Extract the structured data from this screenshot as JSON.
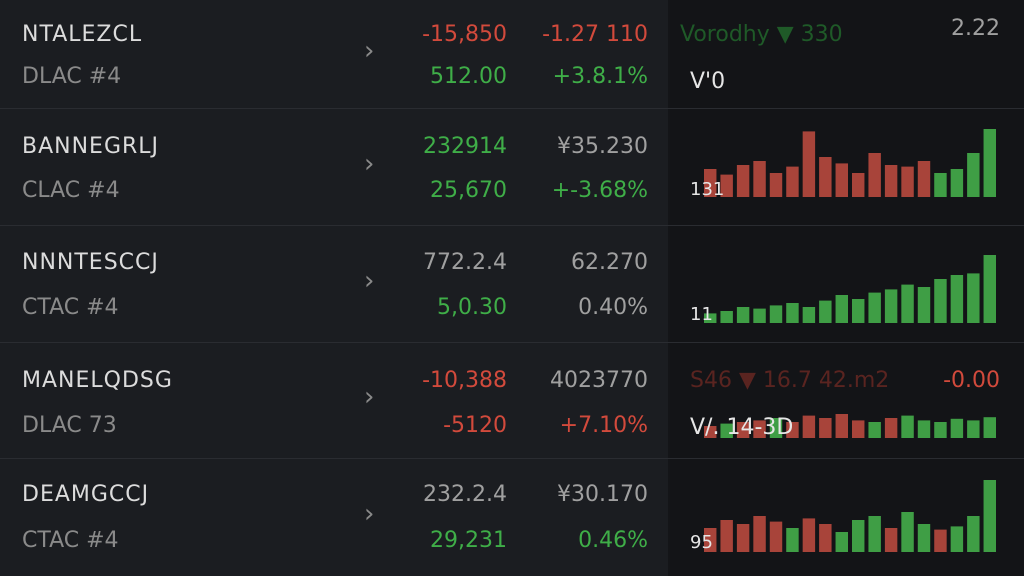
{
  "rows": [
    {
      "name": "NTALEZCL",
      "sub": "DLAC #4",
      "top": [
        "-15,850",
        "-1.27 110"
      ],
      "bottom": [
        "512.00",
        "+3.8.1%"
      ],
      "panel": {
        "header": "Vorodhy ▼ 330",
        "value": "2.22",
        "label": "V'0"
      }
    },
    {
      "name": "BANNEGRLJ",
      "sub": "CLAC #4",
      "top": [
        "232914",
        "¥35.230"
      ],
      "bottom": [
        "25,670",
        "+-3.68%"
      ],
      "panel": {
        "label": "131"
      },
      "chart": {
        "values": [
          35,
          28,
          40,
          45,
          30,
          38,
          82,
          50,
          42,
          30,
          55,
          40,
          38,
          45,
          30,
          35,
          55,
          85
        ],
        "colors": [
          "#a8443a",
          "#a8443a",
          "#a8443a",
          "#a8443a",
          "#a8443a",
          "#a8443a",
          "#a8443a",
          "#a8443a",
          "#a8443a",
          "#a8443a",
          "#a8443a",
          "#a8443a",
          "#a8443a",
          "#a8443a",
          "#3f9e45",
          "#3f9e45",
          "#3f9e45",
          "#3f9e45"
        ]
      }
    },
    {
      "name": "NNNTESCCJ",
      "sub": "CTAC #4",
      "top": [
        "772.2.4",
        "62.270"
      ],
      "bottom": [
        "5,0.30",
        "0.40%"
      ],
      "panel": {
        "label": "11"
      },
      "chart": {
        "values": [
          12,
          15,
          20,
          18,
          22,
          25,
          20,
          28,
          35,
          30,
          38,
          42,
          48,
          45,
          55,
          60,
          62,
          85
        ],
        "colors": [
          "#3f9e45",
          "#3f9e45",
          "#3f9e45",
          "#3f9e45",
          "#3f9e45",
          "#3f9e45",
          "#3f9e45",
          "#3f9e45",
          "#3f9e45",
          "#3f9e45",
          "#3f9e45",
          "#3f9e45",
          "#3f9e45",
          "#3f9e45",
          "#3f9e45",
          "#3f9e45",
          "#3f9e45",
          "#3f9e45"
        ]
      }
    },
    {
      "name": "MANELQDSG",
      "sub": "DLAC 73",
      "top": [
        "-10,388",
        "4023770"
      ],
      "bottom": [
        "-5120",
        "+7.10%"
      ],
      "panel": {
        "header": "S46 ▼ 16.7 42.m2",
        "value": "-0.00",
        "label": "V/. 14-3D"
      },
      "chart": {
        "values": [
          15,
          18,
          20,
          22,
          25,
          20,
          28,
          25,
          30,
          22,
          20,
          25,
          28,
          22,
          20,
          24,
          22,
          26
        ],
        "colors": [
          "#a8443a",
          "#3f9e45",
          "#a8443a",
          "#a8443a",
          "#3f9e45",
          "#a8443a",
          "#a8443a",
          "#a8443a",
          "#a8443a",
          "#a8443a",
          "#3f9e45",
          "#a8443a",
          "#3f9e45",
          "#3f9e45",
          "#3f9e45",
          "#3f9e45",
          "#3f9e45",
          "#3f9e45"
        ]
      }
    },
    {
      "name": "DEAMGCCJ",
      "sub": "CTAC #4",
      "top": [
        "232.2.4",
        "¥30.170"
      ],
      "bottom": [
        "29,231",
        "0.46%"
      ],
      "panel": {
        "label": "95"
      },
      "chart": {
        "values": [
          30,
          40,
          35,
          45,
          38,
          30,
          42,
          35,
          25,
          40,
          45,
          30,
          50,
          35,
          28,
          32,
          45,
          90
        ],
        "colors": [
          "#a8443a",
          "#a8443a",
          "#a8443a",
          "#a8443a",
          "#a8443a",
          "#3f9e45",
          "#a8443a",
          "#a8443a",
          "#3f9e45",
          "#3f9e45",
          "#3f9e45",
          "#a8443a",
          "#3f9e45",
          "#3f9e45",
          "#a8443a",
          "#3f9e45",
          "#3f9e45",
          "#3f9e45"
        ]
      }
    }
  ]
}
